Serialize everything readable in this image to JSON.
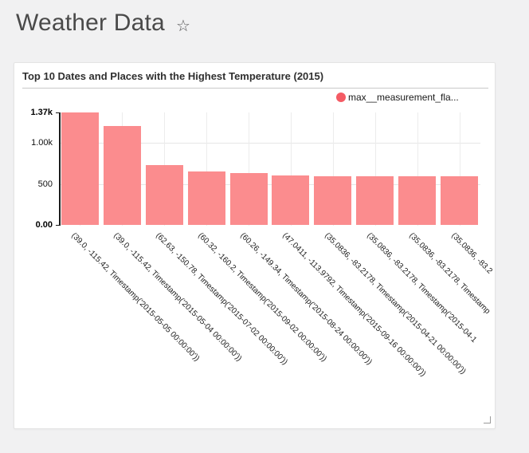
{
  "page": {
    "title": "Weather Data",
    "icons": {
      "star": "☆"
    }
  },
  "chart_data": {
    "type": "bar",
    "title": "Top 10 Dates and Places with the Highest Temperature (2015)",
    "xlabel": "",
    "ylabel": "",
    "legend_position": "top-right",
    "x_tick_rotation_deg": 45,
    "grid": {
      "horizontal_at": [
        500,
        1000
      ],
      "vertical": "category-centers"
    },
    "ylim": [
      0,
      1370
    ],
    "yticks": [
      {
        "label": "0.00",
        "value": 0,
        "bold": true
      },
      {
        "label": "500",
        "value": 500,
        "bold": false
      },
      {
        "label": "1.00k",
        "value": 1000,
        "bold": false
      },
      {
        "label": "1.37k",
        "value": 1370,
        "bold": true
      }
    ],
    "categories": [
      "(39.0, -115.42, Timestamp('2015-05-05 00:00:00'))",
      "(39.0, -115.42, Timestamp('2015-05-04 00:00:00'))",
      "(62.63, -150.78, Timestamp('2015-07-02 00:00:00'))",
      "(60.32, -160.2, Timestamp('2015-09-02 00:00:00'))",
      "(60.26, -149.34, Timestamp('2015-08-24 00:00:00'))",
      "(47.0411, -113.9792, Timestamp('2015-09-16 00:00:00'))",
      "(35.0836, -83.2178, Timestamp('2015-04-21 00:00:00'))",
      "(35.0836, -83.2178, Timestamp('2015-04-1",
      "(35.0836, -83.2178, Timestamp",
      "(35.0836, -83.2"
    ],
    "series": [
      {
        "name": "max__measurement_fla...",
        "values": [
          1370,
          1200,
          730,
          650,
          635,
          600,
          590,
          590,
          590,
          590
        ]
      }
    ],
    "colors": {
      "bar": "#fb8c8e",
      "legend_dot": "#f45b64"
    }
  }
}
